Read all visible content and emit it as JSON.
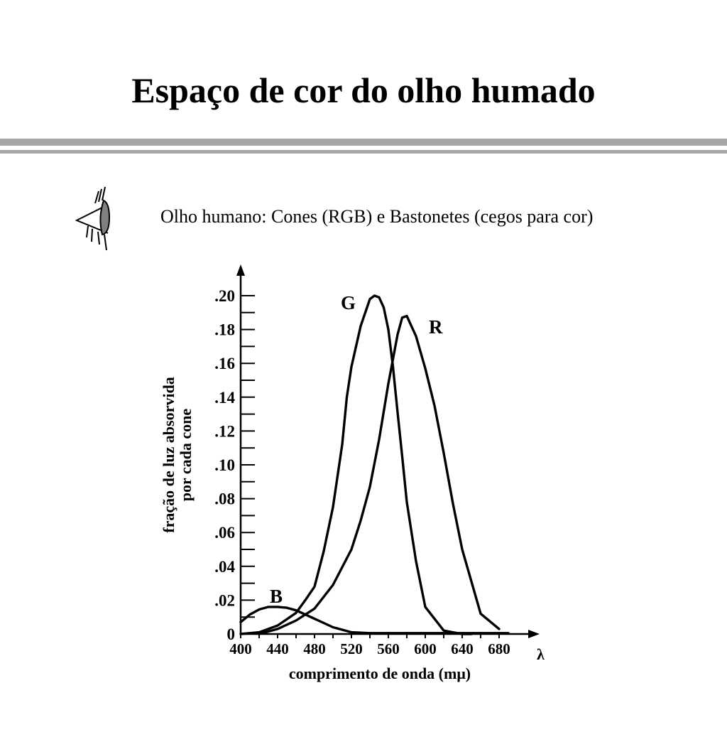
{
  "slide": {
    "title": "Espaço de cor do olho humado",
    "subtitle": "Olho humano: Cones (RGB) e Bastonetes (cegos para cor)",
    "icon": "eye-icon"
  },
  "chart_data": {
    "type": "line",
    "title": "",
    "xlabel": "comprimento de onda (mμ)",
    "xaxis_symbol": "λ",
    "ylabel_lines": [
      "fração de luz absorvida",
      "por cada cone"
    ],
    "xlim": [
      400,
      690
    ],
    "ylim": [
      0,
      0.2
    ],
    "x_ticks": [
      400,
      440,
      480,
      520,
      560,
      600,
      640,
      680
    ],
    "x_tick_labels": [
      "400",
      "440",
      "480",
      "520",
      "560",
      "600",
      "640",
      "680"
    ],
    "y_ticks": [
      0,
      0.02,
      0.04,
      0.06,
      0.08,
      0.1,
      0.12,
      0.14,
      0.16,
      0.18,
      0.2
    ],
    "y_tick_labels": [
      "0",
      ".02",
      ".04",
      ".06",
      ".08",
      ".10",
      ".12",
      ".14",
      ".16",
      ".18",
      ".20"
    ],
    "grid": false,
    "legend": "none",
    "series": [
      {
        "name": "B",
        "x": [
          400,
          410,
          420,
          430,
          440,
          450,
          460,
          470,
          480,
          490,
          500,
          510,
          520,
          540,
          560,
          600,
          640,
          680,
          690
        ],
        "y": [
          0.007,
          0.0115,
          0.0145,
          0.016,
          0.016,
          0.0155,
          0.014,
          0.0115,
          0.009,
          0.0065,
          0.004,
          0.0025,
          0.001,
          0.0005,
          0.0005,
          0.0005,
          0.0005,
          0.0005,
          0.0005
        ]
      },
      {
        "name": "G",
        "x": [
          400,
          420,
          440,
          460,
          470,
          480,
          490,
          500,
          510,
          515,
          520,
          530,
          540,
          545,
          550,
          555,
          560,
          565,
          570,
          575,
          580,
          590,
          600,
          620,
          640,
          650
        ],
        "y": [
          0.0,
          0.001,
          0.005,
          0.0125,
          0.02,
          0.028,
          0.049,
          0.075,
          0.112,
          0.14,
          0.158,
          0.182,
          0.198,
          0.2,
          0.199,
          0.193,
          0.18,
          0.158,
          0.131,
          0.105,
          0.078,
          0.043,
          0.016,
          0.002,
          0.0,
          0.0
        ]
      },
      {
        "name": "R",
        "x": [
          420,
          440,
          460,
          480,
          500,
          520,
          530,
          540,
          550,
          560,
          570,
          575,
          580,
          590,
          600,
          610,
          620,
          630,
          640,
          660,
          680
        ],
        "y": [
          0.0,
          0.003,
          0.008,
          0.015,
          0.029,
          0.05,
          0.067,
          0.087,
          0.115,
          0.148,
          0.177,
          0.187,
          0.188,
          0.176,
          0.157,
          0.135,
          0.107,
          0.077,
          0.05,
          0.012,
          0.003
        ]
      }
    ]
  }
}
